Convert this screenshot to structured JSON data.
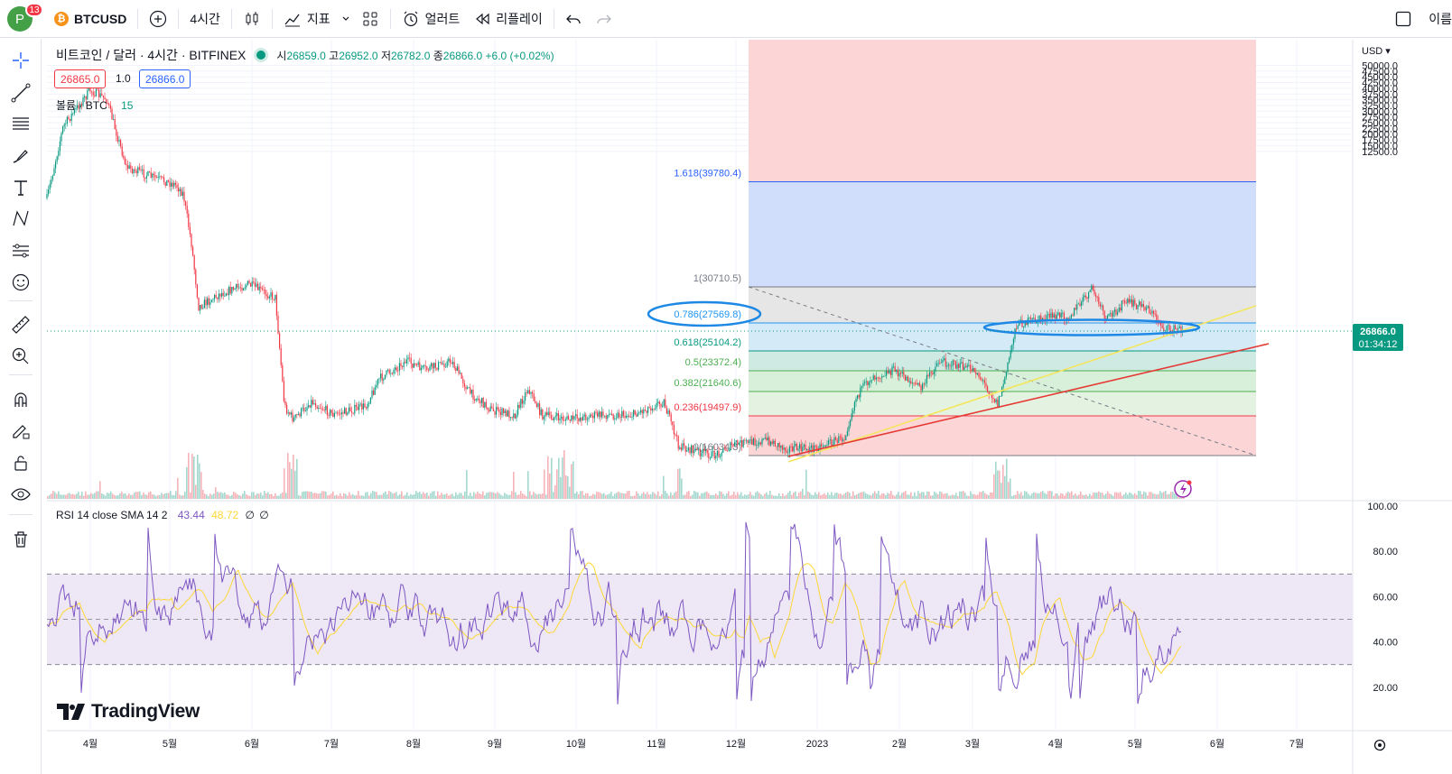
{
  "topbar": {
    "avatar_letter": "P",
    "notification_count": "13",
    "symbol": "BTCUSD",
    "interval": "4시간",
    "indicators_label": "지표",
    "alerts_label": "얼러트",
    "replay_label": "리플레이",
    "right_text": "이름"
  },
  "legend": {
    "title": "비트코인 / 달러 · 4시간 · BITFINEX",
    "open_k": "시",
    "open_v": "26859.0",
    "high_k": "고",
    "high_v": "26952.0",
    "low_k": "저",
    "low_v": "26782.0",
    "close_k": "종",
    "close_v": "26866.0",
    "change": "+6.0 (+0.02%)",
    "bid": "26865.0",
    "spread": "1.0",
    "ask": "26866.0"
  },
  "volume_legend": {
    "label": "볼륨 · BTC",
    "value": "15"
  },
  "rsi_legend": {
    "label": "RSI 14 close SMA 14 2",
    "rsi": "43.44",
    "sma": "48.72",
    "z1": "∅",
    "z2": "∅"
  },
  "price_axis": {
    "currency": "USD",
    "ticks": [
      "50000.0",
      "47500.0",
      "45000.0",
      "42500.0",
      "40000.0",
      "37500.0",
      "35000.0",
      "32500.0",
      "30000.0",
      "27500.0",
      "25000.0",
      "22500.0",
      "20000.0",
      "17500.0",
      "15000.0",
      "12500.0"
    ],
    "current_price": "26866.0",
    "countdown": "01:34:12"
  },
  "rsi_axis": {
    "ticks": [
      "100.00",
      "80.00",
      "60.00",
      "40.00",
      "20.00"
    ]
  },
  "time_axis": {
    "ticks": [
      "4월",
      "5월",
      "6월",
      "7월",
      "8월",
      "9월",
      "10월",
      "11월",
      "12월",
      "2023",
      "2월",
      "3월",
      "4월",
      "5월",
      "6월",
      "7월"
    ]
  },
  "fib_levels": [
    {
      "label": "1.618(39780.4)",
      "color": "#2962ff"
    },
    {
      "label": "1(30710.5)",
      "color": "#787b86"
    },
    {
      "label": "0.786(27569.8)",
      "color": "#2196f3"
    },
    {
      "label": "0.618(25104.2)",
      "color": "#089981"
    },
    {
      "label": "0.5(23372.4)",
      "color": "#4caf50"
    },
    {
      "label": "0.382(21640.6)",
      "color": "#4caf50"
    },
    {
      "label": "0.236(19497.9)",
      "color": "#f23645"
    },
    {
      "label": "0(16034.3)",
      "color": "#787b86"
    }
  ],
  "colors": {
    "up": "#089981",
    "down": "#f23645",
    "rsi": "#7e57c2",
    "rsi_sma": "#fdd835",
    "accent": "#2962ff"
  },
  "branding": {
    "logo_text": "TradingView"
  }
}
